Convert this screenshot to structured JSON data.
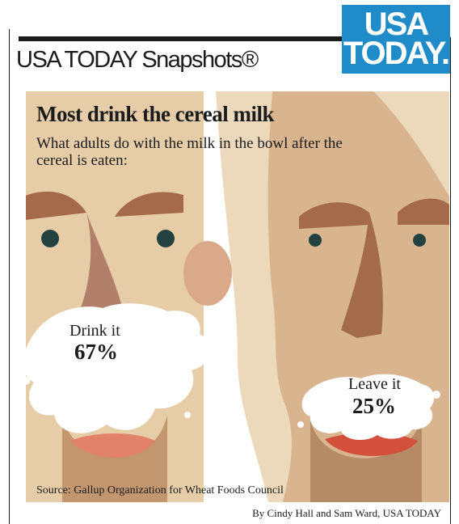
{
  "brand": {
    "logo_line1": "USA",
    "logo_line2": "TODAY."
  },
  "snapshot_title": "USA TODAY Snapshots®",
  "chart_data": {
    "type": "other",
    "title": "Most drink the cereal milk",
    "subtitle": "What adults do with the milk in the bowl after the cereal is eaten:",
    "categories": [
      "Drink it",
      "Leave it"
    ],
    "values": [
      67,
      25
    ],
    "unit": "%",
    "value_labels": [
      "67%",
      "25%"
    ]
  },
  "source": "Source: Gallup Organization for Wheat Foods Council",
  "credit": "By Cindy Hall and Sam Ward, USA TODAY",
  "colors": {
    "skin_left": "#e6cda8",
    "skin_right": "#d8b48f",
    "hair": "#ecd9bb",
    "milk": "#ffffff",
    "eye": "#23413e",
    "lip": "#c0392b",
    "logo_blue": "#1f8bc9"
  }
}
